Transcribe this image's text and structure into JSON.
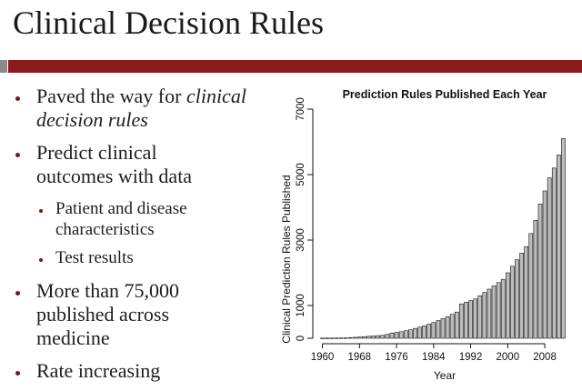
{
  "slide": {
    "title": "Clinical Decision Rules",
    "bullets": [
      {
        "lines": [
          "Paved the way for ",
          "decision rules"
        ],
        "em": "clinical"
      },
      {
        "lines": [
          "Predict clinical",
          "outcomes with data"
        ]
      },
      {
        "lines": [
          "Patient and disease",
          "characteristics"
        ]
      },
      {
        "lines": [
          "Test results"
        ]
      },
      {
        "lines": [
          "More than 75,000",
          "published across",
          "medicine"
        ]
      },
      {
        "lines": [
          "Rate increasing"
        ]
      }
    ],
    "accent_color": "#8b1a1a"
  },
  "chart_data": {
    "type": "bar",
    "title": "Prediction Rules Published Each Year",
    "xlabel": "Year",
    "ylabel": "Clinical Prediction Rules Published",
    "ylim": [
      0,
      7000
    ],
    "yticks": [
      "0",
      "1000",
      "3000",
      "5000",
      "7000"
    ],
    "xticks": [
      "1960",
      "1968",
      "1976",
      "1984",
      "1992",
      "2000",
      "2008"
    ],
    "bar_color": "#bdbdbd",
    "x": [
      1960,
      1961,
      1962,
      1963,
      1964,
      1965,
      1966,
      1967,
      1968,
      1969,
      1970,
      1971,
      1972,
      1973,
      1974,
      1975,
      1976,
      1977,
      1978,
      1979,
      1980,
      1981,
      1982,
      1983,
      1984,
      1985,
      1986,
      1987,
      1988,
      1989,
      1990,
      1991,
      1992,
      1993,
      1994,
      1995,
      1996,
      1997,
      1998,
      1999,
      2000,
      2001,
      2002,
      2003,
      2004,
      2005,
      2006,
      2007,
      2008,
      2009,
      2010,
      2011,
      2012
    ],
    "values": [
      5,
      5,
      6,
      8,
      10,
      12,
      20,
      30,
      40,
      50,
      60,
      70,
      80,
      90,
      120,
      160,
      180,
      200,
      230,
      260,
      300,
      340,
      380,
      430,
      480,
      540,
      600,
      660,
      730,
      800,
      1050,
      1100,
      1150,
      1200,
      1300,
      1400,
      1500,
      1600,
      1700,
      1800,
      2000,
      2200,
      2400,
      2600,
      2800,
      3200,
      3600,
      4100,
      4500,
      4900,
      5200,
      5600,
      6100
    ]
  }
}
